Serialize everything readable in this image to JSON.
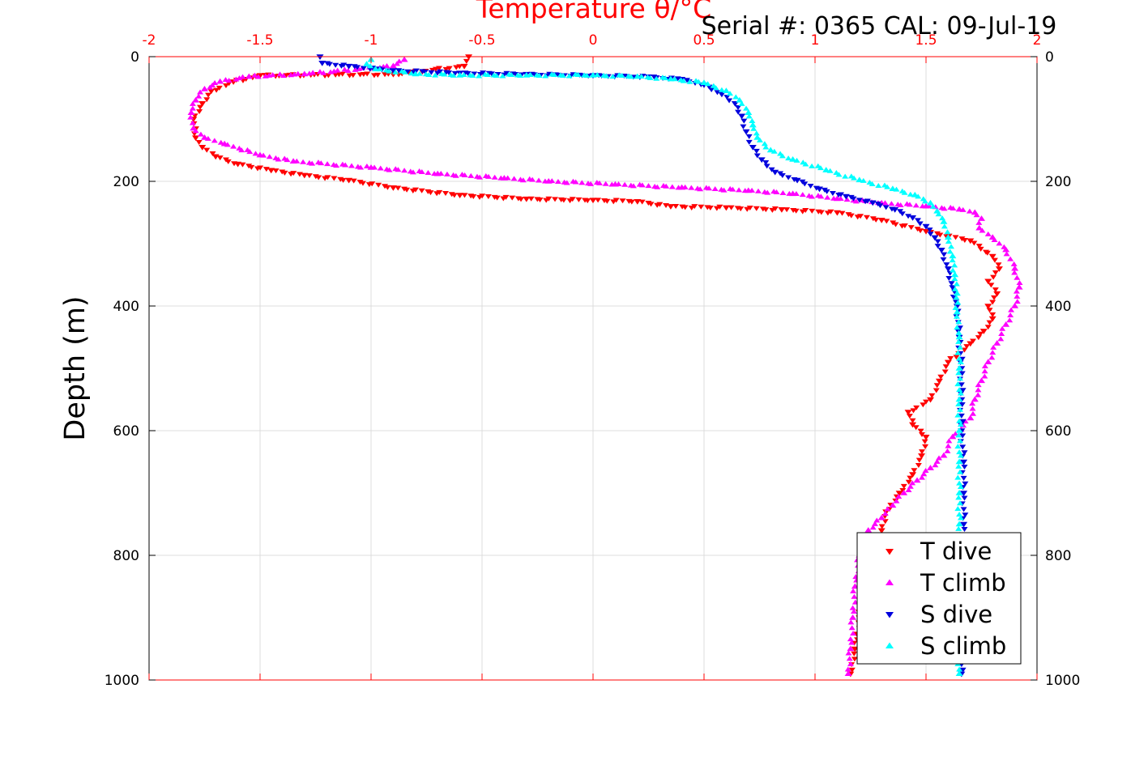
{
  "chart_data": {
    "type": "scatter",
    "title": "Serial #: 0365  CAL: 09-Jul-19",
    "xlabel": "Temperature θ/°C",
    "ylabel": "Depth (m)",
    "xlim": [
      -2,
      2
    ],
    "ylim": [
      0,
      1000
    ],
    "y_reversed": true,
    "grid": true,
    "legend_position": "bottom-right",
    "x_ticks": [
      "-2",
      "-1.5",
      "-1",
      "-0.5",
      "0",
      "0.5",
      "1",
      "1.5",
      "2"
    ],
    "y_ticks": [
      "0",
      "200",
      "400",
      "600",
      "800",
      "1000"
    ],
    "colors": {
      "axis_x": "#ff0000",
      "t_dive": "#ff0000",
      "t_climb": "#ff00ff",
      "s_dive": "#0000dd",
      "s_climb": "#00ffff"
    },
    "series": [
      {
        "name": "T dive",
        "marker": "triangle-down",
        "color": "#ff0000",
        "points": [
          [
            -0.56,
            0
          ],
          [
            -0.58,
            15
          ],
          [
            -0.9,
            28
          ],
          [
            -1.5,
            30
          ],
          [
            -1.62,
            40
          ],
          [
            -1.72,
            55
          ],
          [
            -1.76,
            75
          ],
          [
            -1.8,
            100
          ],
          [
            -1.79,
            130
          ],
          [
            -1.76,
            145
          ],
          [
            -1.7,
            160
          ],
          [
            -1.6,
            172
          ],
          [
            -1.45,
            182
          ],
          [
            -1.3,
            190
          ],
          [
            -1.1,
            198
          ],
          [
            -0.9,
            210
          ],
          [
            -0.6,
            222
          ],
          [
            -0.3,
            228
          ],
          [
            0.0,
            230
          ],
          [
            0.2,
            232
          ],
          [
            0.35,
            240
          ],
          [
            0.6,
            242
          ],
          [
            0.85,
            245
          ],
          [
            1.1,
            250
          ],
          [
            1.3,
            262
          ],
          [
            1.5,
            280
          ],
          [
            1.7,
            295
          ],
          [
            1.8,
            320
          ],
          [
            1.83,
            340
          ],
          [
            1.78,
            360
          ],
          [
            1.82,
            380
          ],
          [
            1.78,
            400
          ],
          [
            1.8,
            420
          ],
          [
            1.76,
            440
          ],
          [
            1.7,
            460
          ],
          [
            1.6,
            490
          ],
          [
            1.56,
            520
          ],
          [
            1.52,
            550
          ],
          [
            1.42,
            570
          ],
          [
            1.44,
            590
          ],
          [
            1.5,
            610
          ],
          [
            1.48,
            640
          ],
          [
            1.44,
            670
          ],
          [
            1.38,
            700
          ],
          [
            1.32,
            730
          ],
          [
            1.3,
            760
          ],
          [
            1.26,
            800
          ],
          [
            1.22,
            850
          ],
          [
            1.2,
            900
          ],
          [
            1.18,
            950
          ],
          [
            1.16,
            990
          ]
        ]
      },
      {
        "name": "T climb",
        "marker": "triangle-up",
        "color": "#ff00ff",
        "points": [
          [
            -0.85,
            5
          ],
          [
            -0.9,
            15
          ],
          [
            -1.3,
            28
          ],
          [
            -1.55,
            32
          ],
          [
            -1.68,
            40
          ],
          [
            -1.75,
            52
          ],
          [
            -1.79,
            70
          ],
          [
            -1.81,
            90
          ],
          [
            -1.8,
            115
          ],
          [
            -1.75,
            130
          ],
          [
            -1.66,
            140
          ],
          [
            -1.5,
            158
          ],
          [
            -1.35,
            168
          ],
          [
            -1.0,
            178
          ],
          [
            -0.7,
            188
          ],
          [
            -0.4,
            195
          ],
          [
            -0.2,
            200
          ],
          [
            0.1,
            205
          ],
          [
            0.4,
            210
          ],
          [
            0.7,
            215
          ],
          [
            0.9,
            220
          ],
          [
            1.1,
            228
          ],
          [
            1.3,
            235
          ],
          [
            1.5,
            240
          ],
          [
            1.65,
            245
          ],
          [
            1.72,
            250
          ],
          [
            1.75,
            260
          ],
          [
            1.74,
            275
          ],
          [
            1.8,
            290
          ],
          [
            1.86,
            310
          ],
          [
            1.9,
            340
          ],
          [
            1.92,
            370
          ],
          [
            1.9,
            400
          ],
          [
            1.86,
            430
          ],
          [
            1.82,
            460
          ],
          [
            1.78,
            490
          ],
          [
            1.75,
            520
          ],
          [
            1.72,
            550
          ],
          [
            1.7,
            580
          ],
          [
            1.62,
            610
          ],
          [
            1.58,
            640
          ],
          [
            1.52,
            660
          ],
          [
            1.46,
            680
          ],
          [
            1.4,
            700
          ],
          [
            1.35,
            720
          ],
          [
            1.3,
            740
          ],
          [
            1.24,
            760
          ],
          [
            1.2,
            800
          ],
          [
            1.18,
            850
          ],
          [
            1.17,
            900
          ],
          [
            1.16,
            950
          ],
          [
            1.15,
            990
          ]
        ]
      },
      {
        "name": "S dive",
        "marker": "triangle-down",
        "color": "#0000dd",
        "points": [
          [
            -1.23,
            0
          ],
          [
            -1.22,
            10
          ],
          [
            -1.1,
            15
          ],
          [
            -0.9,
            22
          ],
          [
            -0.6,
            26
          ],
          [
            -0.3,
            28
          ],
          [
            0.0,
            30
          ],
          [
            0.25,
            32
          ],
          [
            0.4,
            36
          ],
          [
            0.5,
            45
          ],
          [
            0.58,
            60
          ],
          [
            0.64,
            75
          ],
          [
            0.67,
            95
          ],
          [
            0.69,
            120
          ],
          [
            0.72,
            145
          ],
          [
            0.76,
            165
          ],
          [
            0.82,
            185
          ],
          [
            0.92,
            198
          ],
          [
            1.02,
            212
          ],
          [
            1.14,
            224
          ],
          [
            1.26,
            234
          ],
          [
            1.36,
            245
          ],
          [
            1.44,
            258
          ],
          [
            1.5,
            272
          ],
          [
            1.54,
            290
          ],
          [
            1.57,
            310
          ],
          [
            1.6,
            340
          ],
          [
            1.62,
            370
          ],
          [
            1.64,
            400
          ],
          [
            1.65,
            450
          ],
          [
            1.66,
            500
          ],
          [
            1.66,
            550
          ],
          [
            1.66,
            600
          ],
          [
            1.67,
            650
          ],
          [
            1.67,
            700
          ],
          [
            1.67,
            750
          ],
          [
            1.67,
            800
          ],
          [
            1.67,
            850
          ],
          [
            1.67,
            900
          ],
          [
            1.66,
            950
          ],
          [
            1.66,
            990
          ]
        ]
      },
      {
        "name": "S climb",
        "marker": "triangle-up",
        "color": "#00ffff",
        "points": [
          [
            -1.0,
            5
          ],
          [
            -1.02,
            12
          ],
          [
            -0.98,
            20
          ],
          [
            -0.8,
            28
          ],
          [
            -0.6,
            30
          ],
          [
            -0.3,
            30
          ],
          [
            0.0,
            30
          ],
          [
            0.2,
            32
          ],
          [
            0.35,
            36
          ],
          [
            0.5,
            42
          ],
          [
            0.6,
            55
          ],
          [
            0.66,
            70
          ],
          [
            0.7,
            90
          ],
          [
            0.72,
            110
          ],
          [
            0.74,
            130
          ],
          [
            0.8,
            150
          ],
          [
            0.9,
            165
          ],
          [
            1.05,
            182
          ],
          [
            1.2,
            198
          ],
          [
            1.35,
            212
          ],
          [
            1.45,
            222
          ],
          [
            1.52,
            235
          ],
          [
            1.55,
            248
          ],
          [
            1.58,
            265
          ],
          [
            1.6,
            290
          ],
          [
            1.62,
            320
          ],
          [
            1.63,
            350
          ],
          [
            1.64,
            380
          ],
          [
            1.64,
            410
          ],
          [
            1.65,
            450
          ],
          [
            1.65,
            500
          ],
          [
            1.65,
            550
          ],
          [
            1.65,
            600
          ],
          [
            1.65,
            650
          ],
          [
            1.65,
            700
          ],
          [
            1.65,
            750
          ],
          [
            1.65,
            800
          ],
          [
            1.65,
            850
          ],
          [
            1.65,
            900
          ],
          [
            1.65,
            950
          ],
          [
            1.65,
            990
          ]
        ]
      }
    ]
  }
}
